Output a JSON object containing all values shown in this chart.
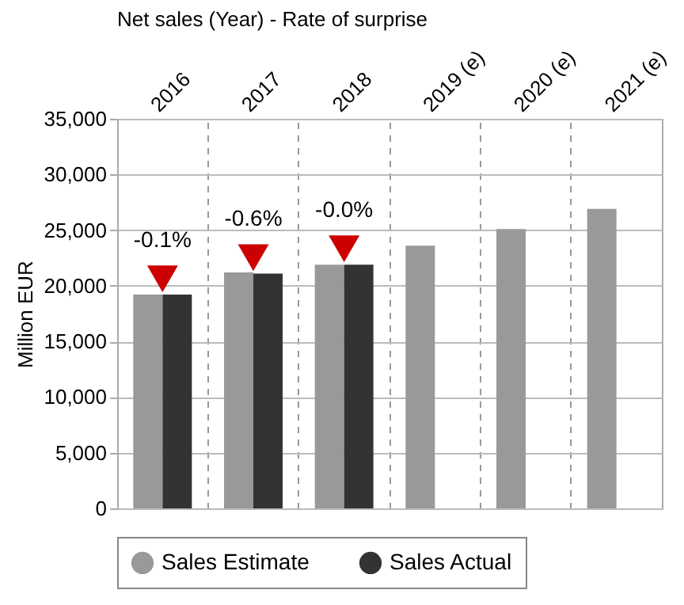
{
  "chart_data": {
    "type": "bar",
    "title": "Net sales (Year) - Rate of surprise",
    "ylabel": "Million EUR",
    "categories": [
      "2016",
      "2017",
      "2018",
      "2019 (e)",
      "2020 (e)",
      "2021 (e)"
    ],
    "series": [
      {
        "name": "Sales Estimate",
        "color": "#999999",
        "values": [
          19200,
          21200,
          21900,
          23600,
          25100,
          26900
        ]
      },
      {
        "name": "Sales Actual",
        "color": "#333333",
        "values": [
          19200,
          21100,
          21900,
          null,
          null,
          null
        ]
      }
    ],
    "ylim": [
      0,
      35000
    ],
    "yticks": [
      0,
      {
        "value": 5000,
        "label": "5,000"
      },
      {
        "value": 10000,
        "label": "10,000"
      },
      {
        "value": 15000,
        "label": "15,000"
      },
      {
        "value": 20000,
        "label": "20,000"
      },
      {
        "value": 25000,
        "label": "25,000"
      },
      {
        "value": 30000,
        "label": "30,000"
      },
      {
        "value": 35000,
        "label": "35,000"
      }
    ],
    "annotations": [
      {
        "text": "-0.1%",
        "x": "2016",
        "y": 19200
      },
      {
        "text": "-0.6%",
        "x": "2017",
        "y": 21100
      },
      {
        "text": "-0.0%",
        "x": "2018",
        "y": 21900
      }
    ],
    "grid": true,
    "legend": "bottom"
  }
}
